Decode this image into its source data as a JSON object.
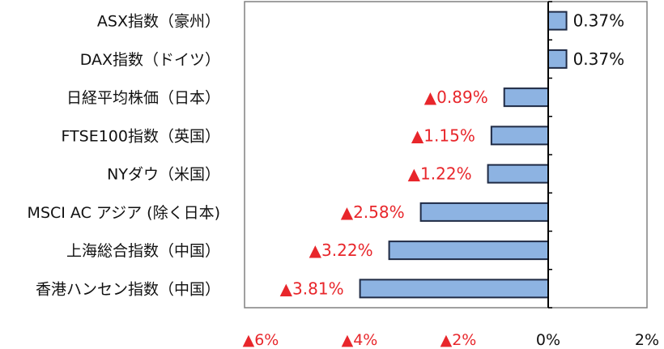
{
  "chart_data": {
    "type": "bar",
    "orientation": "horizontal",
    "categories": [
      "ASX指数（豪州）",
      "DAX指数（ドイツ）",
      "日経平均株価（日本）",
      "FTSE100指数（英国）",
      "NYダウ（米国）",
      "MSCI AC アジア (除く日本)",
      "上海総合指数（中国）",
      "香港ハンセン指数（中国）"
    ],
    "values": [
      0.37,
      0.37,
      -0.89,
      -1.15,
      -1.22,
      -2.58,
      -3.22,
      -3.81
    ],
    "value_labels": [
      "0.37%",
      "0.37%",
      "▲0.89%",
      "▲1.15%",
      "▲1.22%",
      "▲2.58%",
      "▲3.22%",
      "▲3.81%"
    ],
    "x_ticks": [
      -6,
      -4,
      -2,
      0,
      2
    ],
    "x_tick_labels": [
      "▲6%",
      "▲4%",
      "▲2%",
      "0%",
      "2%"
    ],
    "xlim": [
      -6,
      2
    ],
    "title": "",
    "xlabel": "",
    "ylabel": "",
    "grid": false,
    "colors": {
      "bar_fill": "#8db3e2",
      "bar_stroke": "#1f2a44",
      "negative_text": "#e8262b",
      "positive_text": "#111111",
      "axis": "#000000",
      "plot_border": "#808080"
    }
  }
}
